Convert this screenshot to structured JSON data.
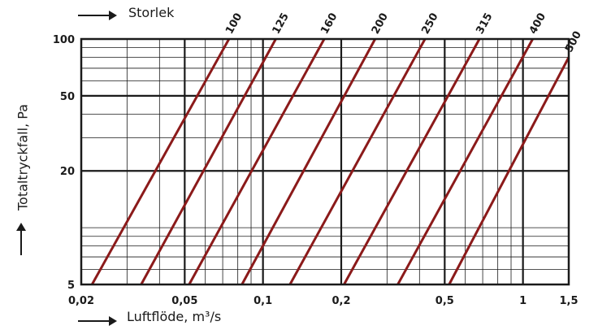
{
  "chart_data": {
    "type": "line",
    "xlabel": "Luftflöde, m³/s",
    "ylabel": "Totaltryckfall, Pa",
    "series_title": "Storlek",
    "x_scale": "log",
    "y_scale": "log",
    "xlim": [
      0.02,
      1.5
    ],
    "ylim": [
      5,
      100
    ],
    "grid": true,
    "x_ticks": [
      {
        "value": 0.02,
        "label": "0,02"
      },
      {
        "value": 0.05,
        "label": "0,05"
      },
      {
        "value": 0.1,
        "label": "0,1"
      },
      {
        "value": 0.2,
        "label": "0,2"
      },
      {
        "value": 0.5,
        "label": "0,5"
      },
      {
        "value": 1,
        "label": "1"
      },
      {
        "value": 1.5,
        "label": "1,5"
      }
    ],
    "y_ticks": [
      {
        "value": 100,
        "label": "100"
      },
      {
        "value": 50,
        "label": "50"
      },
      {
        "value": 20,
        "label": "20"
      },
      {
        "value": 5,
        "label": "5"
      }
    ],
    "series": [
      {
        "name": "100",
        "points": [
          [
            0.022,
            5
          ],
          [
            0.074,
            100
          ]
        ]
      },
      {
        "name": "125",
        "points": [
          [
            0.034,
            5
          ],
          [
            0.112,
            100
          ]
        ]
      },
      {
        "name": "160",
        "points": [
          [
            0.052,
            5
          ],
          [
            0.172,
            100
          ]
        ]
      },
      {
        "name": "200",
        "points": [
          [
            0.083,
            5
          ],
          [
            0.27,
            100
          ]
        ]
      },
      {
        "name": "250",
        "points": [
          [
            0.127,
            5
          ],
          [
            0.42,
            100
          ]
        ]
      },
      {
        "name": "315",
        "points": [
          [
            0.205,
            5
          ],
          [
            0.68,
            100
          ]
        ]
      },
      {
        "name": "400",
        "points": [
          [
            0.33,
            5
          ],
          [
            1.09,
            100
          ]
        ]
      },
      {
        "name": "500",
        "points": [
          [
            0.52,
            5
          ],
          [
            1.5,
            80
          ]
        ]
      }
    ],
    "colors": {
      "lines": "#8b1a1a",
      "grid": "#1a1a1a",
      "text": "#1a1a1a"
    }
  }
}
